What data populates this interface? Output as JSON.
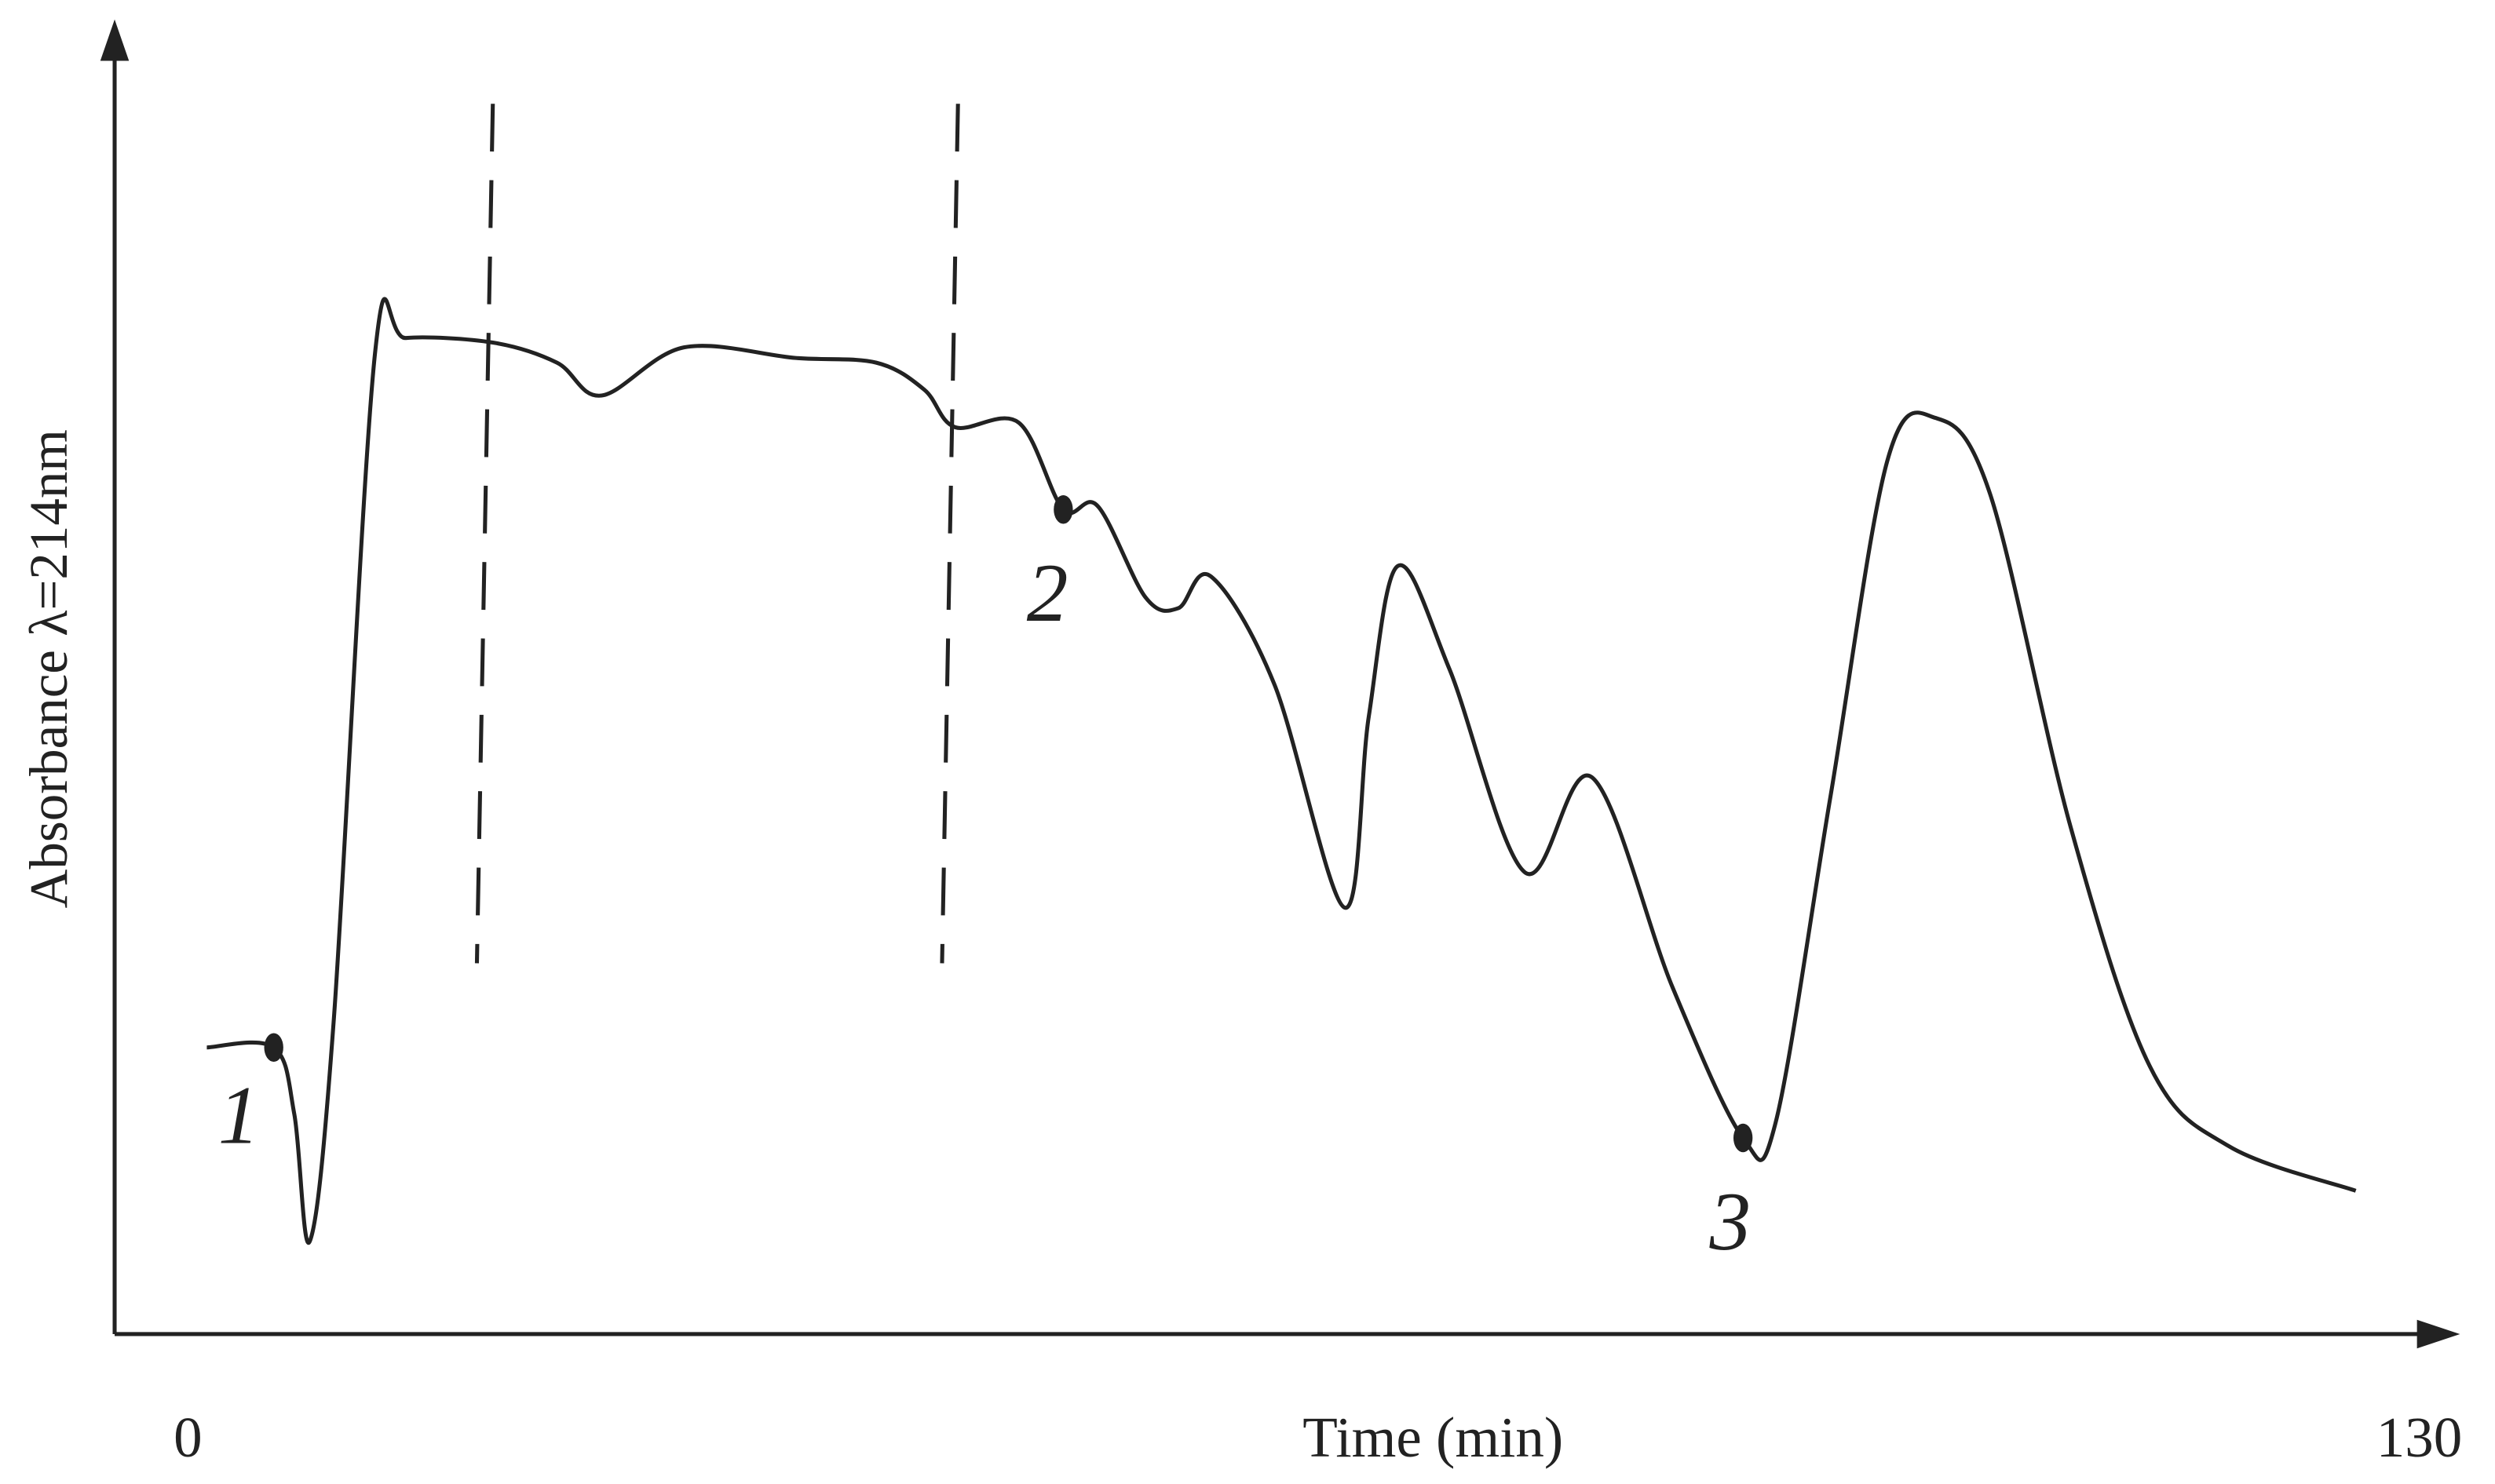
{
  "chart_data": {
    "type": "line",
    "xlabel": "Time (min)",
    "ylabel": "Absorbance  λ=214nm",
    "x": [
      1.1,
      5.0,
      6.2,
      7.1,
      8.5,
      10.9,
      12.7,
      17.8,
      21.5,
      24.1,
      28.9,
      35.4,
      40.1,
      42.9,
      44.7,
      48.4,
      51.0,
      53.0,
      55.8,
      57.7,
      59.6,
      63.3,
      67.4,
      68.8,
      70.5,
      73.5,
      77.9,
      81.8,
      86.5,
      90.6,
      92.5,
      95.7,
      99.0,
      101.8,
      105.0,
      109.7,
      114.3,
      118.9,
      126.3
    ],
    "values": [
      24.4,
      24.4,
      18.7,
      7.9,
      26.8,
      83.5,
      84.8,
      84.4,
      82.7,
      79.9,
      84.0,
      83.1,
      82.7,
      80.4,
      77.2,
      77.6,
      70.2,
      70.5,
      62.7,
      61.8,
      64.5,
      55.3,
      36.3,
      52.6,
      65.4,
      56.6,
      39.3,
      47.4,
      29.5,
      16.7,
      18.0,
      45.8,
      74.3,
      78.0,
      71.5,
      43.1,
      22.8,
      16.0,
      12.2
    ],
    "color": "#222222",
    "xlim": [
      -3.5,
      132
    ],
    "xticks": [
      0,
      130
    ],
    "ylim": [
      0,
      111
    ],
    "vlines": [
      17.3,
      44.4
    ],
    "points": [
      {
        "label": "1",
        "x": 5.0,
        "y": 24.4
      },
      {
        "label": "2",
        "x": 51.0,
        "y": 70.2
      },
      {
        "label": "3",
        "x": 90.6,
        "y": 16.7
      }
    ]
  }
}
